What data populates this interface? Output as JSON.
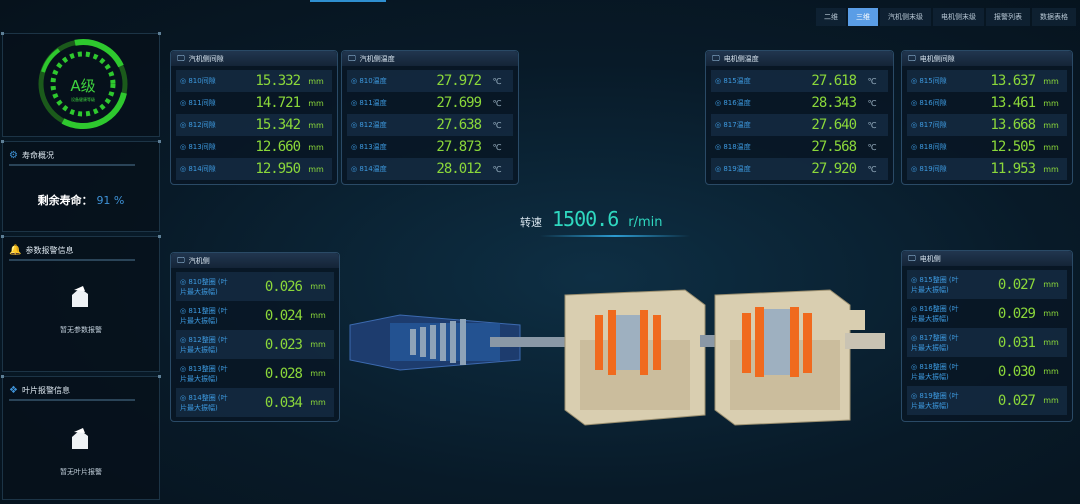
{
  "tabs": [
    {
      "label": "二维",
      "active": false
    },
    {
      "label": "三维",
      "active": true
    },
    {
      "label": "汽机侧末级",
      "active": false
    },
    {
      "label": "电机侧末级",
      "active": false
    },
    {
      "label": "报警列表",
      "active": false
    },
    {
      "label": "数据表格",
      "active": false
    }
  ],
  "grade": {
    "label": "A级",
    "sub": "设备健康等级"
  },
  "life": {
    "title": "寿命概况",
    "label": "剩余寿命：",
    "value": "91 %"
  },
  "param_alarm": {
    "title": "参数报警信息",
    "empty": "暂无参数报警"
  },
  "blade_alarm": {
    "title": "叶片报警信息",
    "empty": "暂无叶片报警"
  },
  "speed": {
    "label": "转速",
    "value": "1500.6",
    "unit": "r/min"
  },
  "panels": {
    "turbine_gap": {
      "title": "汽机侧间隙",
      "rows": [
        {
          "label": "810间隙",
          "value": "15.332",
          "unit": "mm"
        },
        {
          "label": "811间隙",
          "value": "14.721",
          "unit": "mm"
        },
        {
          "label": "812间隙",
          "value": "15.342",
          "unit": "mm"
        },
        {
          "label": "813间隙",
          "value": "12.660",
          "unit": "mm"
        },
        {
          "label": "814间隙",
          "value": "12.950",
          "unit": "mm"
        }
      ]
    },
    "turbine_temp": {
      "title": "汽机侧温度",
      "rows": [
        {
          "label": "810温度",
          "value": "27.972",
          "unit": "℃"
        },
        {
          "label": "811温度",
          "value": "27.699",
          "unit": "℃"
        },
        {
          "label": "812温度",
          "value": "27.638",
          "unit": "℃"
        },
        {
          "label": "813温度",
          "value": "27.873",
          "unit": "℃"
        },
        {
          "label": "814温度",
          "value": "28.012",
          "unit": "℃"
        }
      ]
    },
    "motor_temp": {
      "title": "电机侧温度",
      "rows": [
        {
          "label": "815温度",
          "value": "27.618",
          "unit": "℃"
        },
        {
          "label": "816温度",
          "value": "28.343",
          "unit": "℃"
        },
        {
          "label": "817温度",
          "value": "27.640",
          "unit": "℃"
        },
        {
          "label": "818温度",
          "value": "27.568",
          "unit": "℃"
        },
        {
          "label": "819温度",
          "value": "27.920",
          "unit": "℃"
        }
      ]
    },
    "motor_gap": {
      "title": "电机侧间隙",
      "rows": [
        {
          "label": "815间隙",
          "value": "13.637",
          "unit": "mm"
        },
        {
          "label": "816间隙",
          "value": "13.461",
          "unit": "mm"
        },
        {
          "label": "817间隙",
          "value": "13.668",
          "unit": "mm"
        },
        {
          "label": "818间隙",
          "value": "12.505",
          "unit": "mm"
        },
        {
          "label": "819间隙",
          "value": "11.953",
          "unit": "mm"
        }
      ]
    },
    "turbine_amp": {
      "title": "汽机侧",
      "rows": [
        {
          "label": "810整圈 (叶片最大振幅)",
          "value": "0.026",
          "unit": "mm"
        },
        {
          "label": "811整圈 (叶片最大振幅)",
          "value": "0.024",
          "unit": "mm"
        },
        {
          "label": "812整圈 (叶片最大振幅)",
          "value": "0.023",
          "unit": "mm"
        },
        {
          "label": "813整圈 (叶片最大振幅)",
          "value": "0.028",
          "unit": "mm"
        },
        {
          "label": "814整圈 (叶片最大振幅)",
          "value": "0.034",
          "unit": "mm"
        }
      ]
    },
    "motor_amp": {
      "title": "电机侧",
      "rows": [
        {
          "label": "815整圈 (叶片最大振幅)",
          "value": "0.027",
          "unit": "mm"
        },
        {
          "label": "816整圈 (叶片最大振幅)",
          "value": "0.029",
          "unit": "mm"
        },
        {
          "label": "817整圈 (叶片最大振幅)",
          "value": "0.031",
          "unit": "mm"
        },
        {
          "label": "818整圈 (叶片最大振幅)",
          "value": "0.030",
          "unit": "mm"
        },
        {
          "label": "819整圈 (叶片最大振幅)",
          "value": "0.027",
          "unit": "mm"
        }
      ]
    }
  },
  "colors": {
    "value": "#8bd83a",
    "accent": "#3d9ae0",
    "tab_active": "#5a9de6",
    "speed": "#2fd8c0"
  }
}
